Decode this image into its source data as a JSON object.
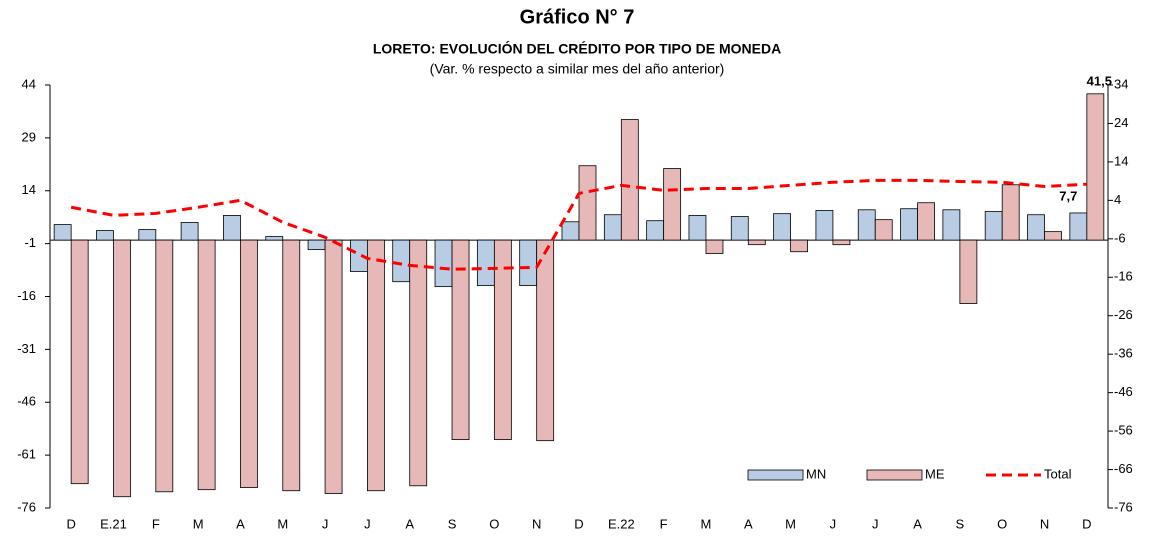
{
  "chart_data": {
    "type": "bar",
    "title": "Gráfico N° 7",
    "subtitle": "LORETO: EVOLUCIÓN DEL CRÉDITO POR TIPO DE MONEDA",
    "note": "(Var. % respecto a similar mes del año anterior)",
    "categories": [
      "D",
      "E.21",
      "F",
      "M",
      "A",
      "M",
      "J",
      "J",
      "A",
      "S",
      "O",
      "N",
      "D",
      "E.22",
      "F",
      "M",
      "A",
      "M",
      "J",
      "J",
      "A",
      "S",
      "O",
      "N",
      "D"
    ],
    "ylim": [
      -76,
      44
    ],
    "yticks": [
      -76,
      -61,
      -46,
      -31,
      -16,
      -1,
      14,
      29,
      44
    ],
    "y2lim": [
      -76,
      34
    ],
    "y2ticks": [
      -76,
      -66,
      -56,
      -46,
      -36,
      -26,
      -16,
      -6,
      4,
      14,
      24,
      34
    ],
    "legend": "bottom-right",
    "series": [
      {
        "name": "MN",
        "color": "#b8cce4",
        "values": [
          4.4,
          2.7,
          3.0,
          5.0,
          7.0,
          1.0,
          -2.7,
          -8.9,
          -11.8,
          -13.2,
          -12.9,
          -12.9,
          5.2,
          7.2,
          5.5,
          7.0,
          6.7,
          7.5,
          8.4,
          8.6,
          8.9,
          8.6,
          8.1,
          7.2,
          7.7
        ],
        "value_labels": [
          null,
          null,
          null,
          null,
          null,
          null,
          null,
          null,
          null,
          null,
          null,
          null,
          null,
          null,
          null,
          null,
          null,
          null,
          null,
          null,
          null,
          null,
          null,
          null,
          "7,7"
        ]
      },
      {
        "name": "ME",
        "color": "#e6b9b8",
        "values": [
          -69.1,
          -72.8,
          -71.4,
          -70.8,
          -70.2,
          -71.1,
          -71.9,
          -71.1,
          -69.7,
          -56.6,
          -56.6,
          -56.9,
          21.1,
          34.2,
          20.3,
          -3.8,
          -1.3,
          -3.3,
          -1.3,
          5.8,
          10.6,
          -18.0,
          15.7,
          2.4,
          41.5
        ],
        "value_labels": [
          null,
          null,
          null,
          null,
          null,
          null,
          null,
          null,
          null,
          null,
          null,
          null,
          null,
          null,
          null,
          null,
          null,
          null,
          null,
          null,
          null,
          null,
          null,
          null,
          "41,5"
        ]
      },
      {
        "name": "Total",
        "type": "line",
        "axis": "y2",
        "color": "#ff0000",
        "values": [
          2.2,
          0.1,
          0.6,
          2.2,
          4.0,
          -1.7,
          -5.6,
          -11.1,
          -12.9,
          -13.9,
          -13.7,
          -13.4,
          5.8,
          7.9,
          6.6,
          7.1,
          7.1,
          7.9,
          8.7,
          9.2,
          9.2,
          8.9,
          8.7,
          7.6,
          8.2
        ]
      }
    ]
  }
}
